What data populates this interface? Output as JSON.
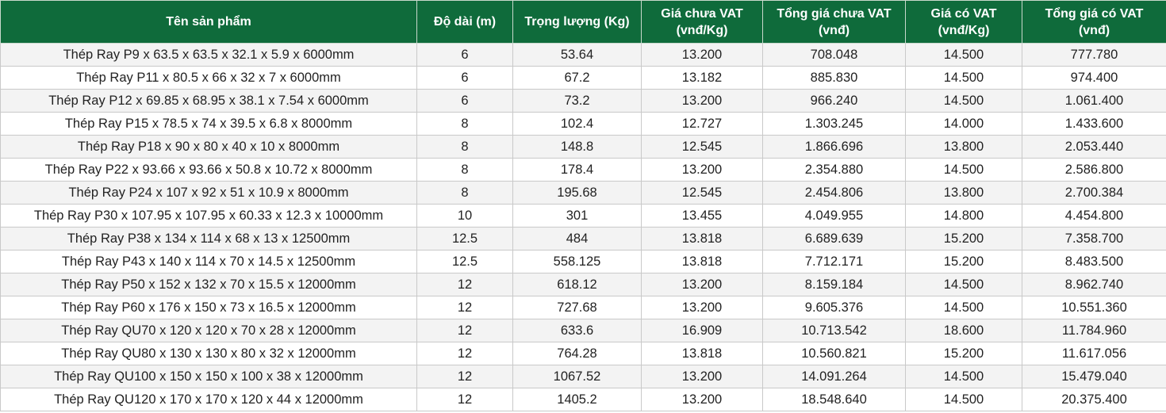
{
  "table": {
    "header": [
      "Tên sản phẩm",
      "Độ dài (m)",
      "Trọng lượng (Kg)",
      "Giá chưa VAT\n(vnđ/Kg)",
      "Tổng giá chưa VAT\n(vnđ)",
      "Giá có VAT\n(vnđ/Kg)",
      "Tổng giá có VAT\n(vnđ)"
    ],
    "rows": [
      [
        "Thép Ray P9 x 63.5 x 63.5 x 32.1 x 5.9 x 6000mm",
        "6",
        "53.64",
        "13.200",
        "708.048",
        "14.500",
        "777.780"
      ],
      [
        "Thép Ray P11 x 80.5 x 66 x 32 x 7 x 6000mm",
        "6",
        "67.2",
        "13.182",
        "885.830",
        "14.500",
        "974.400"
      ],
      [
        "Thép Ray P12 x 69.85 x 68.95 x 38.1 x 7.54 x 6000mm",
        "6",
        "73.2",
        "13.200",
        "966.240",
        "14.500",
        "1.061.400"
      ],
      [
        "Thép Ray P15 x 78.5 x 74 x 39.5 x 6.8 x 8000mm",
        "8",
        "102.4",
        "12.727",
        "1.303.245",
        "14.000",
        "1.433.600"
      ],
      [
        "Thép Ray P18 x 90 x 80 x 40 x 10 x 8000mm",
        "8",
        "148.8",
        "12.545",
        "1.866.696",
        "13.800",
        "2.053.440"
      ],
      [
        "Thép Ray P22 x 93.66 x 93.66 x 50.8 x 10.72 x 8000mm",
        "8",
        "178.4",
        "13.200",
        "2.354.880",
        "14.500",
        "2.586.800"
      ],
      [
        "Thép Ray P24 x 107 x 92 x 51 x 10.9 x 8000mm",
        "8",
        "195.68",
        "12.545",
        "2.454.806",
        "13.800",
        "2.700.384"
      ],
      [
        "Thép Ray P30 x 107.95 x 107.95 x 60.33 x 12.3 x 10000mm",
        "10",
        "301",
        "13.455",
        "4.049.955",
        "14.800",
        "4.454.800"
      ],
      [
        "Thép Ray P38 x 134 x 114 x 68 x 13 x 12500mm",
        "12.5",
        "484",
        "13.818",
        "6.689.639",
        "15.200",
        "7.358.700"
      ],
      [
        "Thép Ray P43 x 140 x 114 x 70 x 14.5 x 12500mm",
        "12.5",
        "558.125",
        "13.818",
        "7.712.171",
        "15.200",
        "8.483.500"
      ],
      [
        "Thép Ray P50 x 152 x 132 x 70 x 15.5 x 12000mm",
        "12",
        "618.12",
        "13.200",
        "8.159.184",
        "14.500",
        "8.962.740"
      ],
      [
        "Thép Ray P60 x 176 x 150 x 73 x 16.5 x 12000mm",
        "12",
        "727.68",
        "13.200",
        "9.605.376",
        "14.500",
        "10.551.360"
      ],
      [
        "Thép Ray QU70 x 120 x 120 x 70 x 28 x 12000mm",
        "12",
        "633.6",
        "16.909",
        "10.713.542",
        "18.600",
        "11.784.960"
      ],
      [
        "Thép Ray QU80 x 130 x 130 x 80 x 32 x 12000mm",
        "12",
        "764.28",
        "13.818",
        "10.560.821",
        "15.200",
        "11.617.056"
      ],
      [
        "Thép Ray QU100 x 150 x 150 x 100 x 38 x 12000mm",
        "12",
        "1067.52",
        "13.200",
        "14.091.264",
        "14.500",
        "15.479.040"
      ],
      [
        "Thép Ray QU120 x 170 x 170 x 120 x 44 x 12000mm",
        "12",
        "1405.2",
        "13.200",
        "18.548.640",
        "14.500",
        "20.375.400"
      ]
    ]
  }
}
